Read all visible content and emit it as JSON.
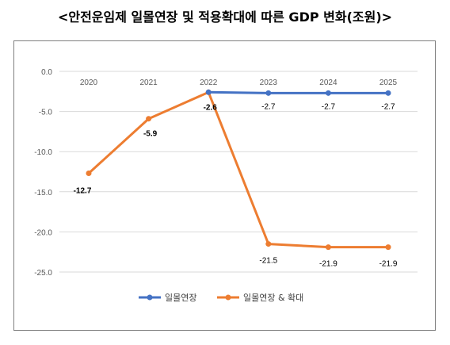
{
  "title": "<안전운임제 일몰연장 및 적용확대에 따른 GDP 변화(조원)>",
  "chart_data": {
    "type": "line",
    "categories": [
      "2020",
      "2021",
      "2022",
      "2023",
      "2024",
      "2025"
    ],
    "y_tick_labels": [
      "0.0",
      "-5.0",
      "-10.0",
      "-15.0",
      "-20.0",
      "-25.0"
    ],
    "ylim": [
      -25,
      0
    ],
    "grid": true,
    "legend_position": "bottom",
    "series": [
      {
        "name": "일몰연장",
        "color": "#4472C4",
        "x": [
          "2022",
          "2023",
          "2024",
          "2025"
        ],
        "values": [
          -2.6,
          -2.7,
          -2.7,
          -2.7
        ],
        "labels": [
          "-2.7",
          "-2.7",
          "-2.7"
        ]
      },
      {
        "name": "일몰연장 & 확대",
        "color": "#ED7D31",
        "x": [
          "2020",
          "2021",
          "2022",
          "2023",
          "2024",
          "2025"
        ],
        "values": [
          -12.7,
          -5.9,
          -2.6,
          -21.5,
          -21.9,
          -21.9
        ],
        "labels": [
          "-12.7",
          "-5.9",
          "-2.6",
          "-21.5",
          "-21.9",
          "-21.9"
        ]
      }
    ]
  }
}
